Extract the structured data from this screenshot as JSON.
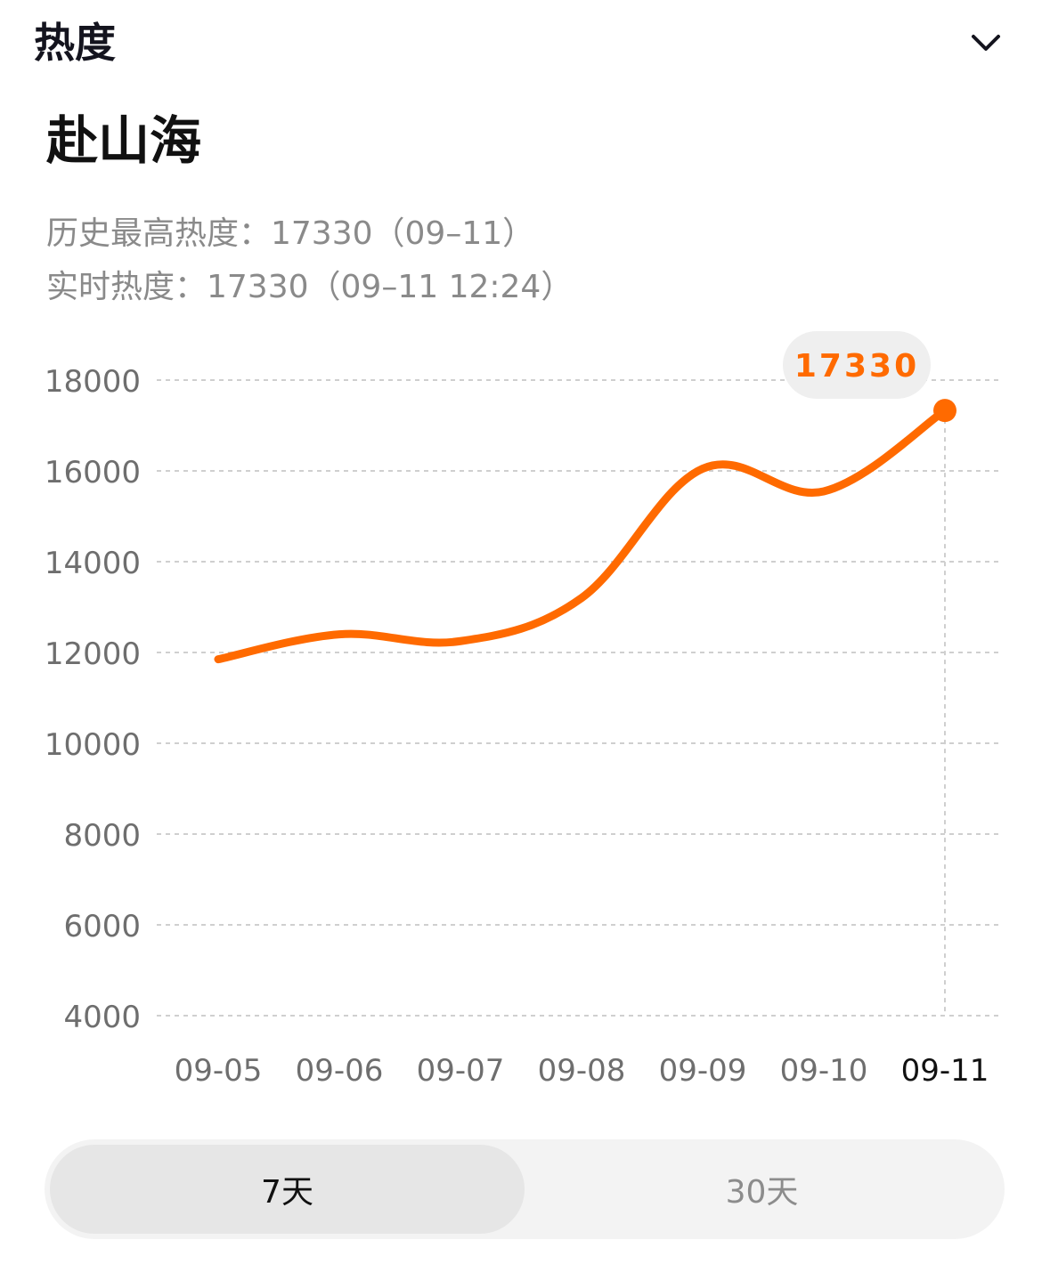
{
  "header": {
    "title": "热度",
    "collapse_icon": "chevron-down-icon"
  },
  "item": {
    "title": "赴山海"
  },
  "stats": {
    "historical_high": "历史最高热度：17330（09–11）",
    "realtime": "实时热度：17330（09–11 12:24）"
  },
  "chart_data": {
    "type": "line",
    "x": [
      "09-05",
      "09-06",
      "09-07",
      "09-08",
      "09-09",
      "09-10",
      "09-11"
    ],
    "series": [
      {
        "values": [
          11850,
          12400,
          12250,
          13200,
          16050,
          15550,
          17330
        ]
      }
    ],
    "y_ticks": [
      "18000",
      "16000",
      "14000",
      "12000",
      "10000",
      "8000",
      "6000",
      "4000"
    ],
    "ylim": [
      4000,
      18000
    ],
    "grid": true,
    "highlight": {
      "index": 6,
      "label": "17330"
    },
    "line_color": "#ff6a00",
    "highlight_text_color": "#ff6a00"
  },
  "range_tabs": [
    {
      "label": "7天",
      "active": true
    },
    {
      "label": "30天",
      "active": false
    }
  ]
}
